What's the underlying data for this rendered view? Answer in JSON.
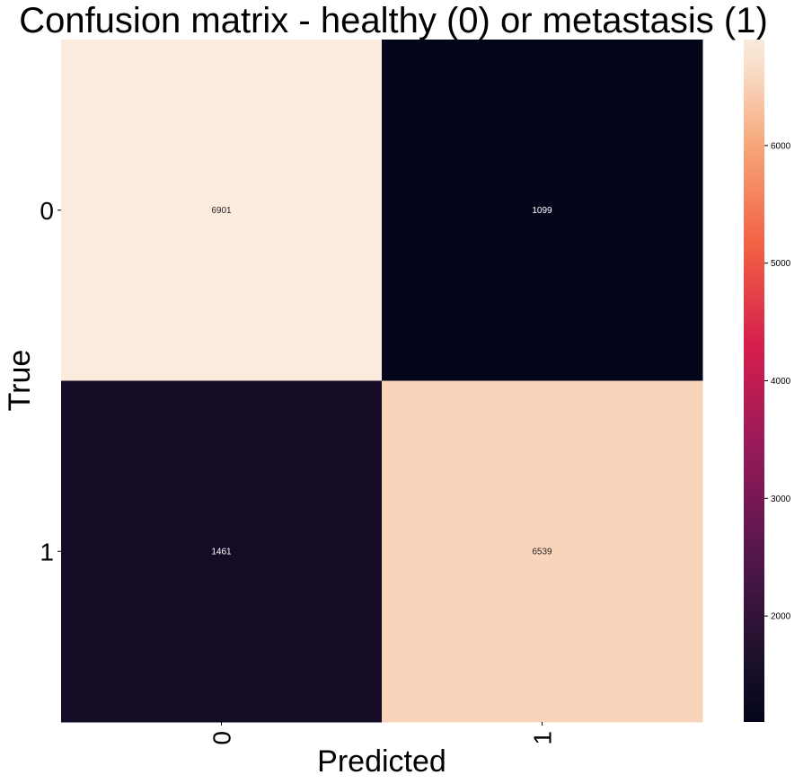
{
  "chart_data": {
    "type": "heatmap",
    "title": "Confusion matrix - healthy (0) or metastasis (1)",
    "xlabel": "Predicted",
    "ylabel": "True",
    "x_categories": [
      "0",
      "1"
    ],
    "y_categories": [
      "0",
      "1"
    ],
    "values": [
      [
        6901,
        1099
      ],
      [
        1461,
        6539
      ]
    ],
    "cell_labels": [
      [
        "6901",
        "1099"
      ],
      [
        "1461",
        "6539"
      ]
    ],
    "colormap": "rocket",
    "colorbar": {
      "vmin": 1099,
      "vmax": 6901,
      "ticks": [
        2000,
        3000,
        4000,
        5000,
        6000
      ],
      "tick_labels": [
        "2000",
        "3000",
        "4000",
        "5000",
        "6000"
      ]
    },
    "grid": false
  }
}
